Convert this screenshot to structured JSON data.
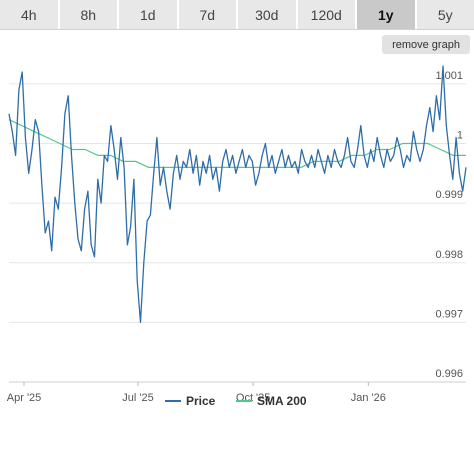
{
  "tabs": [
    {
      "label": "4h",
      "active": false
    },
    {
      "label": "8h",
      "active": false
    },
    {
      "label": "1d",
      "active": false
    },
    {
      "label": "7d",
      "active": false
    },
    {
      "label": "30d",
      "active": false
    },
    {
      "label": "120d",
      "active": false
    },
    {
      "label": "1y",
      "active": true
    },
    {
      "label": "5y",
      "active": false
    }
  ],
  "remove_graph_label": "remove graph",
  "chart_data": {
    "type": "line",
    "x_ticks": [
      "Apr '25",
      "Jul '25",
      "Oct '25",
      "Jan '26"
    ],
    "y_ticks": [
      "1.001",
      "1",
      "0.999",
      "0.998",
      "0.997",
      "0.996"
    ],
    "y_tick_values": [
      1.001,
      1.0,
      0.999,
      0.998,
      0.997,
      0.996
    ],
    "ylim": [
      0.996,
      1.0013
    ],
    "grid": true,
    "legend_position": "bottom",
    "x_start": "2025-03-20",
    "x_end": "2026-03-20",
    "series": [
      {
        "name": "Price",
        "color": "#2f6da8",
        "values": [
          1.0005,
          1.0002,
          0.9998,
          1.0009,
          1.0012,
          1.0001,
          0.9995,
          0.9999,
          1.0004,
          1.0002,
          0.9993,
          0.9985,
          0.9987,
          0.9982,
          0.9991,
          0.9989,
          0.9996,
          1.0005,
          1.0008,
          0.9998,
          0.999,
          0.9984,
          0.9982,
          0.9989,
          0.9992,
          0.9983,
          0.9981,
          0.9994,
          0.999,
          0.9998,
          0.9997,
          1.0003,
          0.9999,
          0.9994,
          1.0001,
          0.9996,
          0.9983,
          0.9986,
          0.9994,
          0.9977,
          0.997,
          0.998,
          0.9987,
          0.9988,
          0.9995,
          1.0001,
          0.9993,
          0.9996,
          0.9992,
          0.9989,
          0.9995,
          0.9998,
          0.9994,
          0.9997,
          0.9996,
          0.9999,
          0.9995,
          0.9998,
          0.9993,
          0.9997,
          0.9995,
          0.9998,
          0.9994,
          0.9996,
          0.9992,
          0.9997,
          0.9999,
          0.9996,
          0.9998,
          0.9995,
          0.9997,
          0.9999,
          0.9996,
          0.9998,
          0.9997,
          0.9993,
          0.9995,
          0.9998,
          1.0,
          0.9996,
          0.9998,
          0.9995,
          0.9997,
          0.9999,
          0.9996,
          0.9998,
          0.9996,
          0.9997,
          0.9995,
          0.9999,
          0.9997,
          0.9996,
          0.9998,
          0.9996,
          0.9999,
          0.9997,
          0.9995,
          0.9998,
          0.9996,
          0.9999,
          0.9997,
          0.9996,
          0.9998,
          1.0001,
          0.9997,
          0.9996,
          0.9999,
          1.0003,
          0.9998,
          0.9996,
          0.9999,
          0.9997,
          1.0001,
          0.9998,
          0.9996,
          0.9999,
          0.9997,
          0.9998,
          1.0001,
          0.9999,
          0.9996,
          0.9998,
          0.9997,
          1.0002,
          0.9999,
          0.9997,
          0.9999,
          1.0003,
          1.0006,
          1.0002,
          1.0008,
          1.0004,
          1.0013,
          1.0003,
          0.9998,
          0.9994,
          1.0001,
          0.9995,
          0.9992,
          0.9996
        ]
      },
      {
        "name": "SMA 200",
        "color": "#4fc98a",
        "values": [
          1.0004,
          1.0003,
          1.0002,
          1.0001,
          1.0,
          0.9999,
          0.9999,
          0.9998,
          0.9998,
          0.9997,
          0.9997,
          0.9996,
          0.9996,
          0.9996,
          0.9996,
          0.9996,
          0.9996,
          0.9996,
          0.9996,
          0.9996,
          0.9996,
          0.9996,
          0.9996,
          0.9996,
          0.9997,
          0.9997,
          0.9997,
          0.9998,
          0.9998,
          0.9999,
          0.9999,
          1.0,
          1.0,
          1.0,
          0.9999,
          0.9998,
          0.9998
        ]
      }
    ]
  }
}
